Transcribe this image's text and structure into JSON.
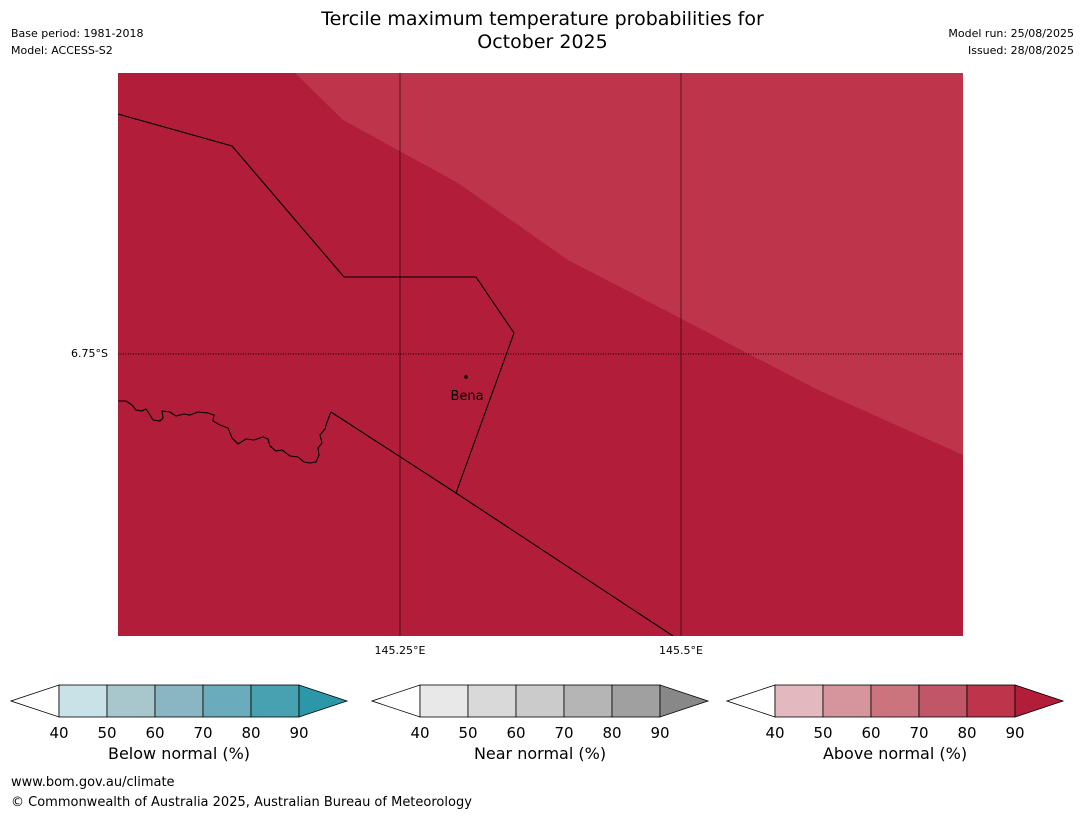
{
  "header": {
    "title_line1": "Tercile maximum temperature probabilities for",
    "title_line2": "October 2025",
    "base_period": "Base period: 1981-2018",
    "model": "Model: ACCESS-S2",
    "model_run": "Model run: 25/08/2025",
    "issued": "Issued: 28/08/2025"
  },
  "map": {
    "place_label": "Bena",
    "lat_label": "6.75°S",
    "lon_labels": [
      "145.25°E",
      "145.5°E"
    ],
    "colors": {
      "above_90": "#b21d3a",
      "above_80_90": "#bd344b",
      "boundary": "#000000"
    }
  },
  "colorbars": [
    {
      "title": "Below normal (%)",
      "ticks": [
        "40",
        "50",
        "60",
        "70",
        "80",
        "90"
      ],
      "colors": [
        "#ffffff",
        "#c9e2e7",
        "#a7c7cd",
        "#8ab5c2",
        "#6aacbb",
        "#48a1b0",
        "#2c97a8"
      ]
    },
    {
      "title": "Near normal (%)",
      "ticks": [
        "40",
        "50",
        "60",
        "70",
        "80",
        "90"
      ],
      "colors": [
        "#ffffff",
        "#e8e8e8",
        "#d9d9d9",
        "#cbcbcb",
        "#b5b5b5",
        "#a0a0a0",
        "#888888"
      ]
    },
    {
      "title": "Above normal (%)",
      "ticks": [
        "40",
        "50",
        "60",
        "70",
        "80",
        "90"
      ],
      "colors": [
        "#ffffff",
        "#e3b8be",
        "#d6959d",
        "#cc747d",
        "#c05667",
        "#bd344b",
        "#b21d3a"
      ]
    }
  ],
  "footer": {
    "url": "www.bom.gov.au/climate",
    "copyright": "© Commonwealth of Australia 2025, Australian Bureau of Meteorology"
  }
}
